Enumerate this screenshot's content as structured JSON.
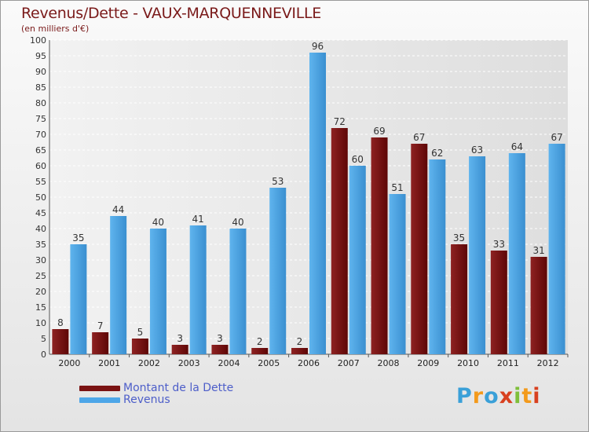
{
  "title": "Revenus/Dette - VAUX-MARQUENNEVILLE",
  "subtitle": "(en milliers d'€)",
  "logo": {
    "letters": [
      "P",
      "r",
      "o",
      "x",
      "i",
      "t",
      "i"
    ],
    "colors": [
      "#3aa0d8",
      "#f39a1c",
      "#3aa0d8",
      "#d8401f",
      "#7fbf3a",
      "#f39a1c",
      "#d8401f"
    ]
  },
  "legend": {
    "items": [
      {
        "label": "Montant de la Dette",
        "color": "#7a1212"
      },
      {
        "label": "Revenus",
        "color": "#4da6e8"
      }
    ]
  },
  "chart_data": {
    "type": "bar",
    "categories": [
      "2000",
      "2001",
      "2002",
      "2003",
      "2004",
      "2005",
      "2006",
      "2007",
      "2008",
      "2009",
      "2010",
      "2011",
      "2012"
    ],
    "series": [
      {
        "name": "Montant de la Dette",
        "color": "#7a1212",
        "values": [
          8,
          7,
          5,
          3,
          3,
          2,
          2,
          72,
          69,
          67,
          35,
          33,
          31
        ]
      },
      {
        "name": "Revenus",
        "color": "#4da6e8",
        "values": [
          35,
          44,
          40,
          41,
          40,
          53,
          96,
          60,
          51,
          62,
          63,
          64,
          67
        ]
      }
    ],
    "ylim": [
      0,
      100
    ],
    "yticks": [
      0,
      5,
      10,
      15,
      20,
      25,
      30,
      35,
      40,
      45,
      50,
      55,
      60,
      65,
      70,
      75,
      80,
      85,
      90,
      95,
      100
    ],
    "grid": true,
    "legend_position": "bottom-left"
  }
}
